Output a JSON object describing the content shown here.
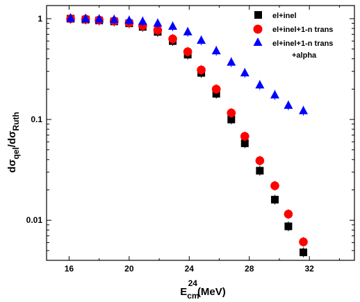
{
  "chart_data": {
    "type": "scatter",
    "x_label": {
      "prefix": "E",
      "sub": "cm",
      "sup": "24",
      "suffix": "(MeV)"
    },
    "y_label": {
      "prefix": "dσ",
      "sub1": "qel",
      "mid": "/dσ",
      "sub2": "Ruth"
    },
    "xlim": [
      14.5,
      35
    ],
    "ylim": [
      0.004,
      1.35
    ],
    "y_scale": "log",
    "x_ticks": [
      16,
      20,
      24,
      28,
      32
    ],
    "y_ticks": [
      {
        "value": 1,
        "label": "1"
      },
      {
        "value": 0.1,
        "label": "0.1"
      },
      {
        "value": 0.01,
        "label": "0.01"
      }
    ],
    "legend_position": "top-right",
    "legend_extra_line": "+alpha",
    "series": [
      {
        "name": "el+inel",
        "marker": "square",
        "color": "#000000",
        "x": [
          16.1,
          17.1,
          18.0,
          19.0,
          20.0,
          20.9,
          21.9,
          22.9,
          23.9,
          24.8,
          25.8,
          26.8,
          27.7,
          28.7,
          29.7,
          30.6,
          31.6
        ],
        "y": [
          1.0,
          0.98,
          0.96,
          0.94,
          0.9,
          0.83,
          0.74,
          0.6,
          0.44,
          0.29,
          0.18,
          0.1,
          0.058,
          0.031,
          0.016,
          0.0087,
          0.0048
        ]
      },
      {
        "name": "el+inel+1-n trans",
        "marker": "circle",
        "color": "#ff0000",
        "x": [
          16.1,
          17.1,
          18.0,
          19.0,
          20.0,
          20.9,
          21.9,
          22.9,
          23.9,
          24.8,
          25.8,
          26.8,
          27.7,
          28.7,
          29.7,
          30.6,
          31.6
        ],
        "y": [
          1.0,
          0.99,
          0.97,
          0.95,
          0.91,
          0.85,
          0.77,
          0.63,
          0.47,
          0.31,
          0.2,
          0.116,
          0.068,
          0.039,
          0.022,
          0.0115,
          0.0061
        ]
      },
      {
        "name": "el+inel+1-n trans",
        "marker": "triangle",
        "color": "#0000ff",
        "x": [
          16.1,
          17.1,
          18.0,
          19.0,
          20.0,
          20.9,
          21.9,
          22.9,
          23.9,
          24.8,
          25.8,
          26.8,
          27.7,
          28.7,
          29.7,
          30.6,
          31.6
        ],
        "y": [
          1.01,
          1.0,
          0.99,
          0.98,
          0.96,
          0.94,
          0.9,
          0.84,
          0.74,
          0.61,
          0.48,
          0.37,
          0.29,
          0.22,
          0.175,
          0.138,
          0.122
        ]
      }
    ]
  }
}
